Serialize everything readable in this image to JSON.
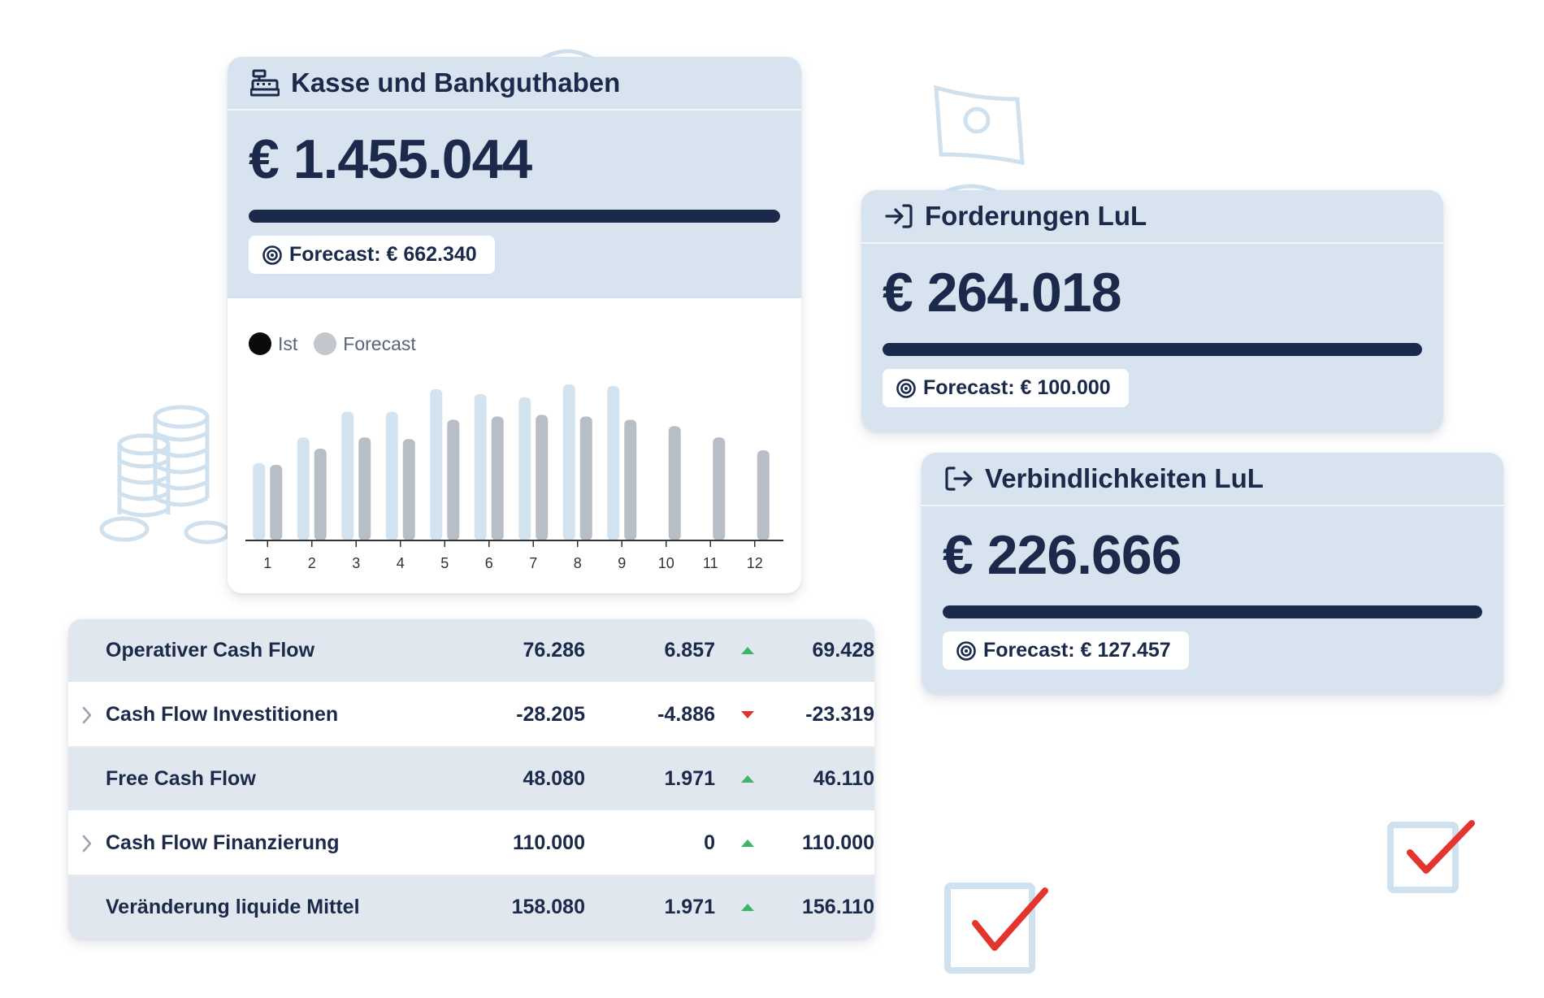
{
  "colors": {
    "navy": "#1b2a4a",
    "card_bg": "#d7e4f0",
    "ist_bar": "#d4e3f0",
    "forecast_bar": "#b8bec5",
    "legend_ist": "#0b0b0b",
    "legend_forecast": "#c2c7cd",
    "up": "#3fb56a",
    "down": "#e3342f",
    "check": "#e3342f",
    "deco": "#cfe0ee"
  },
  "cash_card": {
    "icon": "cash-register-icon",
    "title": "Kasse und Bankguthaben",
    "amount": "€ 1.455.044",
    "progress": 1.0,
    "forecast_label": "Forecast: € 662.340"
  },
  "receivables_card": {
    "icon": "sign-in-arrow-icon",
    "title": "Forderungen LuL",
    "amount": "€ 264.018",
    "progress": 1.0,
    "forecast_label": "Forecast: € 100.000"
  },
  "payables_card": {
    "icon": "sign-out-arrow-icon",
    "title": "Verbindlichkeiten LuL",
    "amount": "€ 226.666",
    "progress": 1.0,
    "forecast_label": "Forecast: € 127.457"
  },
  "chart_data": {
    "type": "bar",
    "categories": [
      "1",
      "2",
      "3",
      "4",
      "5",
      "6",
      "7",
      "8",
      "9",
      "10",
      "11",
      "12"
    ],
    "series": [
      {
        "name": "Ist",
        "values": [
          48,
          64,
          80,
          80,
          94,
          91,
          89,
          97,
          96,
          null,
          null,
          null
        ]
      },
      {
        "name": "Forecast",
        "values": [
          47,
          57,
          64,
          63,
          75,
          77,
          78,
          77,
          75,
          71,
          64,
          56
        ]
      }
    ],
    "ylim": [
      0,
      100
    ],
    "legend": [
      "Ist",
      "Forecast"
    ],
    "legend_position": "top-left",
    "grid": false
  },
  "cashflow_table": {
    "rows": [
      {
        "label": "Operativer Cash Flow",
        "v1": "76.286",
        "v2": "6.857",
        "trend": "up",
        "v3": "69.428",
        "expandable": false
      },
      {
        "label": "Cash Flow Investitionen",
        "v1": "-28.205",
        "v2": "-4.886",
        "trend": "down",
        "v3": "-23.319",
        "expandable": true
      },
      {
        "label": "Free Cash Flow",
        "v1": "48.080",
        "v2": "1.971",
        "trend": "up",
        "v3": "46.110",
        "expandable": false
      },
      {
        "label": "Cash Flow Finanzierung",
        "v1": "110.000",
        "v2": "0",
        "trend": "up",
        "v3": "110.000",
        "expandable": true
      },
      {
        "label": "Veränderung liquide Mittel",
        "v1": "158.080",
        "v2": "1.971",
        "trend": "up",
        "v3": "156.110",
        "expandable": false
      }
    ]
  }
}
